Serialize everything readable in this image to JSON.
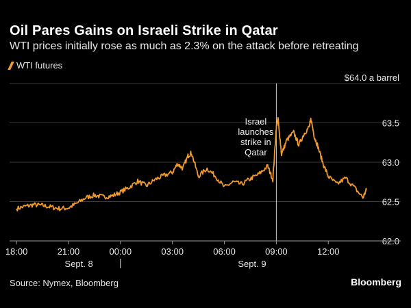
{
  "header": {
    "title": "Oil Pares Gains on Israeli Strike in Qatar",
    "subtitle": "WTI prices initially rose as much as 2.3% on the attack before retreating"
  },
  "footer": {
    "source": "Source: Nymex, Bloomberg",
    "brand": "Bloomberg"
  },
  "colors": {
    "line": "#f29a2e",
    "background": "#000000",
    "grid": "#3a3a3a"
  },
  "chart_data": {
    "type": "line",
    "title": "Oil Pares Gains on Israeli Strike in Qatar",
    "subtitle": "WTI prices initially rose as much as 2.3% on the attack before retreating",
    "ylabel": "$64.0 a barrel",
    "unit_label": "$64.0 a barrel",
    "ylim": [
      62.0,
      64.0
    ],
    "y_ticks": [
      62.0,
      62.5,
      63.0,
      63.5
    ],
    "y_tick_labels": [
      "62.0",
      "62.5",
      "63.0",
      "63.5"
    ],
    "xlim_hours": [
      -0.4,
      20.6
    ],
    "x_ticks": [
      {
        "hour": 0,
        "label": "18:00"
      },
      {
        "hour": 3,
        "label": "21:00"
      },
      {
        "hour": 6,
        "label": "00:00"
      },
      {
        "hour": 9,
        "label": "03:00"
      },
      {
        "hour": 12,
        "label": "06:00"
      },
      {
        "hour": 15,
        "label": "09:00"
      },
      {
        "hour": 18,
        "label": "12:00"
      }
    ],
    "date_labels": [
      {
        "hour": 3.6,
        "label": "Sept. 8"
      },
      {
        "hour": 13.6,
        "label": "Sept. 9"
      }
    ],
    "date_separator_hour": 6.0,
    "grid": true,
    "series": [
      {
        "name": "WTI futures",
        "color": "#f29a2e",
        "x_hours": [
          0,
          0.5,
          1,
          1.5,
          2,
          2.5,
          3,
          3.5,
          4,
          4.5,
          5,
          5.5,
          6,
          6.5,
          7,
          7.5,
          8,
          8.5,
          9,
          9.3,
          9.6,
          9.9,
          10.1,
          10.5,
          11,
          11.5,
          12,
          12.5,
          13,
          13.5,
          14,
          14.5,
          14.8,
          15,
          15.1,
          15.3,
          15.6,
          16,
          16.3,
          16.6,
          16.9,
          17,
          17.2,
          17.4,
          17.7,
          18,
          18.5,
          19,
          19.5,
          20,
          20.2
        ],
        "values": [
          62.41,
          62.44,
          62.46,
          62.45,
          62.43,
          62.41,
          62.42,
          62.48,
          62.55,
          62.58,
          62.56,
          62.57,
          62.62,
          62.68,
          62.76,
          62.7,
          62.78,
          62.83,
          62.87,
          62.98,
          62.92,
          63.08,
          63.12,
          62.82,
          62.92,
          62.82,
          62.68,
          62.75,
          62.72,
          62.79,
          62.85,
          62.95,
          62.78,
          63.45,
          63.55,
          63.1,
          63.28,
          63.38,
          63.22,
          63.36,
          63.45,
          63.55,
          63.32,
          63.2,
          62.98,
          62.82,
          62.72,
          62.8,
          62.68,
          62.55,
          62.65
        ]
      }
    ],
    "annotations": [
      {
        "hour": 15.0,
        "lines": [
          "Israel",
          "launches",
          "strike in",
          "Qatar"
        ]
      }
    ]
  }
}
